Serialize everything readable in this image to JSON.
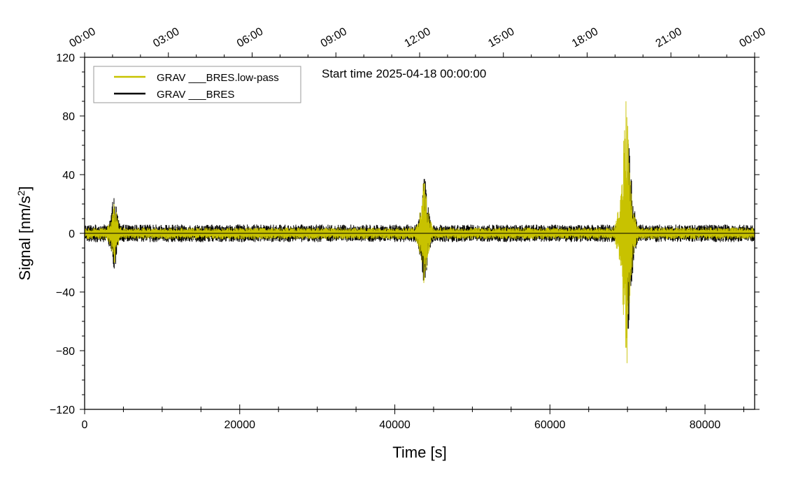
{
  "chart_data": {
    "type": "line",
    "xlabel": "Time [s]",
    "ylabel": "Signal [nm/s",
    "ylabel_superscript": "2",
    "ylabel_close": "]",
    "xlim": [
      0,
      86400
    ],
    "ylim": [
      -120,
      120
    ],
    "x_ticks": [
      0,
      20000,
      40000,
      60000,
      80000
    ],
    "x_tick_labels": [
      "0",
      "20000",
      "40000",
      "60000",
      "80000"
    ],
    "y_ticks": [
      -120,
      -80,
      -40,
      0,
      40,
      80,
      120
    ],
    "y_tick_labels": [
      "−120",
      "−80",
      "−40",
      "0",
      "40",
      "80",
      "120"
    ],
    "top_axis_ticks_hours": [
      0,
      3,
      6,
      9,
      12,
      15,
      18,
      21,
      24
    ],
    "top_axis_labels": [
      "00:00",
      "03:00",
      "06:00",
      "09:00",
      "12:00",
      "15:00",
      "18:00",
      "21:00",
      "00:00"
    ],
    "annotation": "Start time 2025-04-18 00:00:00",
    "legend_position": "top-left",
    "grid": false,
    "series": [
      {
        "name": "GRAV ___BRES",
        "color": "#000000",
        "noise_amplitude": 6,
        "events": [
          {
            "x": 3800,
            "y_max": 24,
            "y_min": -24
          },
          {
            "x": 43800,
            "y_max": 37,
            "y_min": -30
          },
          {
            "x": 70100,
            "y_max": 61,
            "y_min": -65
          }
        ]
      },
      {
        "name": "GRAV ___BRES.low-pass",
        "color": "#c8c200",
        "noise_amplitude": 4,
        "events": [
          {
            "x": 3800,
            "y_max": 20,
            "y_min": -20
          },
          {
            "x": 43800,
            "y_max": 34,
            "y_min": -32
          },
          {
            "x": 69800,
            "y_max": 90,
            "y_min": -78
          }
        ]
      }
    ],
    "legend_order": [
      1,
      0
    ]
  }
}
